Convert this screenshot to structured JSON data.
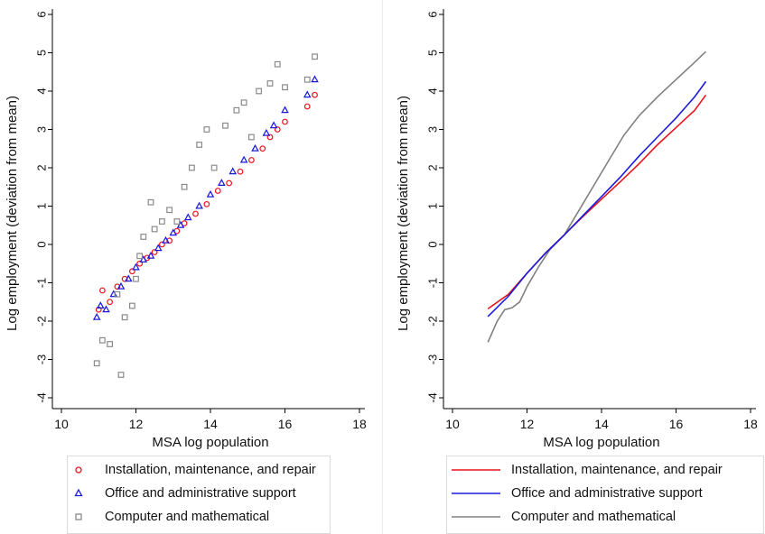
{
  "charts": [
    {
      "type": "scatter",
      "xlabel": "MSA log population",
      "ylabel": "Log employment (deviation from mean)",
      "xlim": [
        10,
        18
      ],
      "ylim": [
        -4,
        6
      ],
      "xticks": [
        "10",
        "12",
        "14",
        "16",
        "18"
      ],
      "yticks": [
        "-4",
        "-3",
        "-2",
        "-1",
        "0",
        "1",
        "2",
        "3",
        "4",
        "5",
        "6"
      ],
      "legend": [
        {
          "label": "Installation, maintenance, and repair",
          "marker": "circle",
          "color": "#e8141c"
        },
        {
          "label": "Office and administrative support",
          "marker": "triangle",
          "color": "#1a1adc"
        },
        {
          "label": "Computer and mathematical",
          "marker": "square",
          "color": "#8a8a8a"
        }
      ]
    },
    {
      "type": "line",
      "xlabel": "MSA log population",
      "ylabel": "Log employment (deviation from mean)",
      "xlim": [
        10,
        18
      ],
      "ylim": [
        -4,
        6
      ],
      "xticks": [
        "10",
        "12",
        "14",
        "16",
        "18"
      ],
      "yticks": [
        "-4",
        "-3",
        "-2",
        "-1",
        "0",
        "1",
        "2",
        "3",
        "4",
        "5",
        "6"
      ],
      "legend": [
        {
          "label": "Installation, maintenance, and repair",
          "color": "#e8141c"
        },
        {
          "label": "Office and administrative support",
          "color": "#1a1adc"
        },
        {
          "label": "Computer and mathematical",
          "color": "#808080"
        }
      ]
    }
  ],
  "chart_data": [
    {
      "type": "scatter",
      "xlabel": "MSA log population",
      "ylabel": "Log employment (deviation from mean)",
      "xlim": [
        10,
        18
      ],
      "ylim": [
        -4,
        6
      ],
      "series": [
        {
          "name": "Installation, maintenance, and repair",
          "marker": "circle",
          "color": "#e8141c",
          "points": [
            [
              11.0,
              -1.7
            ],
            [
              11.1,
              -1.2
            ],
            [
              11.3,
              -1.5
            ],
            [
              11.5,
              -1.1
            ],
            [
              11.7,
              -0.9
            ],
            [
              11.9,
              -0.7
            ],
            [
              12.1,
              -0.5
            ],
            [
              12.3,
              -0.35
            ],
            [
              12.5,
              -0.2
            ],
            [
              12.7,
              0.0
            ],
            [
              12.9,
              0.1
            ],
            [
              13.1,
              0.35
            ],
            [
              13.3,
              0.55
            ],
            [
              13.6,
              0.8
            ],
            [
              13.9,
              1.05
            ],
            [
              14.2,
              1.4
            ],
            [
              14.5,
              1.6
            ],
            [
              14.8,
              1.9
            ],
            [
              15.1,
              2.2
            ],
            [
              15.4,
              2.5
            ],
            [
              15.6,
              2.8
            ],
            [
              15.8,
              3.0
            ],
            [
              16.0,
              3.2
            ],
            [
              16.6,
              3.6
            ],
            [
              16.8,
              3.9
            ]
          ]
        },
        {
          "name": "Office and administrative support",
          "marker": "triangle",
          "color": "#1a1adc",
          "points": [
            [
              10.95,
              -1.9
            ],
            [
              11.05,
              -1.6
            ],
            [
              11.2,
              -1.7
            ],
            [
              11.4,
              -1.3
            ],
            [
              11.6,
              -1.1
            ],
            [
              11.8,
              -0.9
            ],
            [
              12.0,
              -0.6
            ],
            [
              12.2,
              -0.4
            ],
            [
              12.4,
              -0.3
            ],
            [
              12.6,
              -0.1
            ],
            [
              12.8,
              0.1
            ],
            [
              13.0,
              0.3
            ],
            [
              13.2,
              0.5
            ],
            [
              13.4,
              0.7
            ],
            [
              13.7,
              1.0
            ],
            [
              14.0,
              1.3
            ],
            [
              14.3,
              1.6
            ],
            [
              14.6,
              1.9
            ],
            [
              14.9,
              2.2
            ],
            [
              15.2,
              2.5
            ],
            [
              15.5,
              2.9
            ],
            [
              15.7,
              3.1
            ],
            [
              16.0,
              3.5
            ],
            [
              16.6,
              3.9
            ],
            [
              16.8,
              4.3
            ]
          ]
        },
        {
          "name": "Computer and mathematical",
          "marker": "square",
          "color": "#8a8a8a",
          "points": [
            [
              10.95,
              -3.1
            ],
            [
              11.1,
              -2.5
            ],
            [
              11.3,
              -2.6
            ],
            [
              11.5,
              -1.3
            ],
            [
              11.6,
              -3.4
            ],
            [
              11.7,
              -1.9
            ],
            [
              11.9,
              -1.6
            ],
            [
              12.0,
              -0.9
            ],
            [
              12.1,
              -0.3
            ],
            [
              12.2,
              0.2
            ],
            [
              12.4,
              1.1
            ],
            [
              12.5,
              0.4
            ],
            [
              12.7,
              0.6
            ],
            [
              12.9,
              0.9
            ],
            [
              13.1,
              0.6
            ],
            [
              13.3,
              1.5
            ],
            [
              13.5,
              2.0
            ],
            [
              13.7,
              2.6
            ],
            [
              13.9,
              3.0
            ],
            [
              14.1,
              2.0
            ],
            [
              14.4,
              3.1
            ],
            [
              14.7,
              3.5
            ],
            [
              14.9,
              3.7
            ],
            [
              15.1,
              2.8
            ],
            [
              15.3,
              4.0
            ],
            [
              15.6,
              4.2
            ],
            [
              15.8,
              4.7
            ],
            [
              16.0,
              4.1
            ],
            [
              16.6,
              4.3
            ],
            [
              16.8,
              4.9
            ]
          ]
        }
      ]
    },
    {
      "type": "line",
      "xlabel": "MSA log population",
      "ylabel": "Log employment (deviation from mean)",
      "xlim": [
        10,
        18
      ],
      "ylim": [
        -4,
        6
      ],
      "series": [
        {
          "name": "Installation, maintenance, and repair",
          "color": "#e8141c",
          "points": [
            [
              10.95,
              -1.68
            ],
            [
              11.5,
              -1.3
            ],
            [
              12.0,
              -0.75
            ],
            [
              12.5,
              -0.22
            ],
            [
              13.0,
              0.25
            ],
            [
              13.5,
              0.73
            ],
            [
              14.0,
              1.18
            ],
            [
              14.5,
              1.63
            ],
            [
              15.0,
              2.1
            ],
            [
              15.5,
              2.6
            ],
            [
              16.0,
              3.05
            ],
            [
              16.5,
              3.5
            ],
            [
              16.8,
              3.9
            ]
          ]
        },
        {
          "name": "Office and administrative support",
          "color": "#1a1adc",
          "points": [
            [
              10.95,
              -1.88
            ],
            [
              11.5,
              -1.35
            ],
            [
              12.0,
              -0.75
            ],
            [
              12.5,
              -0.22
            ],
            [
              13.0,
              0.25
            ],
            [
              13.5,
              0.75
            ],
            [
              14.0,
              1.25
            ],
            [
              14.5,
              1.75
            ],
            [
              15.0,
              2.3
            ],
            [
              15.5,
              2.8
            ],
            [
              16.0,
              3.3
            ],
            [
              16.5,
              3.85
            ],
            [
              16.8,
              4.25
            ]
          ]
        },
        {
          "name": "Computer and mathematical",
          "color": "#808080",
          "points": [
            [
              10.95,
              -2.55
            ],
            [
              11.2,
              -2.0
            ],
            [
              11.4,
              -1.7
            ],
            [
              11.6,
              -1.65
            ],
            [
              11.8,
              -1.5
            ],
            [
              12.0,
              -1.1
            ],
            [
              12.3,
              -0.6
            ],
            [
              12.6,
              -0.15
            ],
            [
              13.0,
              0.25
            ],
            [
              13.4,
              0.9
            ],
            [
              13.8,
              1.55
            ],
            [
              14.2,
              2.2
            ],
            [
              14.6,
              2.85
            ],
            [
              15.0,
              3.35
            ],
            [
              15.5,
              3.85
            ],
            [
              16.0,
              4.3
            ],
            [
              16.5,
              4.75
            ],
            [
              16.8,
              5.03
            ]
          ]
        }
      ]
    }
  ]
}
